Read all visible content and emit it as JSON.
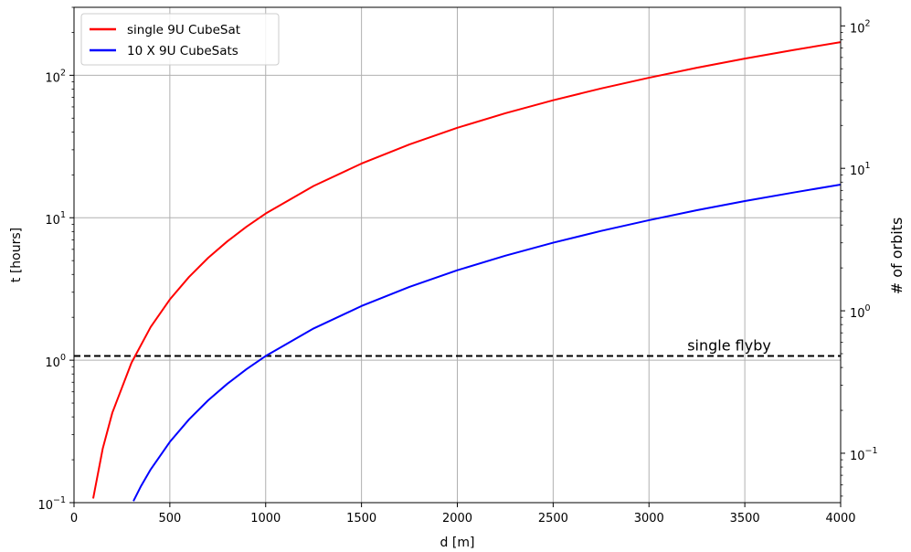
{
  "chart_data": {
    "type": "line",
    "xlabel": "d [m]",
    "ylabel": "t [hours]",
    "y2label": "# of orbits",
    "xlim": [
      0,
      4000
    ],
    "ylim": [
      0.1,
      300
    ],
    "y2lim": [
      0.045,
      135
    ],
    "yscale": "log",
    "y2scale": "log",
    "grid": true,
    "legend_position": "top-left",
    "x_ticks": [
      {
        "value": 0,
        "label": "0"
      },
      {
        "value": 500,
        "label": "500"
      },
      {
        "value": 1000,
        "label": "1000"
      },
      {
        "value": 1500,
        "label": "1500"
      },
      {
        "value": 2000,
        "label": "2000"
      },
      {
        "value": 2500,
        "label": "2500"
      },
      {
        "value": 3000,
        "label": "3000"
      },
      {
        "value": 3500,
        "label": "3500"
      },
      {
        "value": 4000,
        "label": "4000"
      }
    ],
    "y_ticks": [
      {
        "value": 0.1,
        "base": "10",
        "exp": "−1"
      },
      {
        "value": 1,
        "base": "10",
        "exp": "0"
      },
      {
        "value": 10,
        "base": "10",
        "exp": "1"
      },
      {
        "value": 100,
        "base": "10",
        "exp": "2"
      }
    ],
    "y2_ticks": [
      {
        "value": 0.1,
        "base": "10",
        "exp": "−1"
      },
      {
        "value": 1,
        "base": "10",
        "exp": "0"
      },
      {
        "value": 10,
        "base": "10",
        "exp": "1"
      },
      {
        "value": 100,
        "base": "10",
        "exp": "2"
      }
    ],
    "series": [
      {
        "name": "single 9U CubeSat",
        "color": "#ff0000",
        "x": [
          100,
          150,
          200,
          300,
          400,
          500,
          600,
          700,
          800,
          900,
          1000,
          1250,
          1500,
          1750,
          2000,
          2250,
          2500,
          2750,
          3000,
          3250,
          3500,
          3750,
          4000
        ],
        "y": [
          0.107,
          0.24,
          0.428,
          0.96,
          1.71,
          2.67,
          3.84,
          5.23,
          6.83,
          8.65,
          10.7,
          16.7,
          24.0,
          32.7,
          42.8,
          54.1,
          66.8,
          80.8,
          96.1,
          113,
          131,
          150,
          171
        ]
      },
      {
        "name": "10 X 9U CubeSats",
        "color": "#0000ff",
        "x": [
          310,
          350,
          400,
          500,
          600,
          700,
          800,
          900,
          1000,
          1250,
          1500,
          1750,
          2000,
          2250,
          2500,
          2750,
          3000,
          3250,
          3500,
          3750,
          4000
        ],
        "y": [
          0.1025,
          0.131,
          0.171,
          0.267,
          0.384,
          0.523,
          0.683,
          0.865,
          1.07,
          1.67,
          2.4,
          3.27,
          4.28,
          5.41,
          6.68,
          8.08,
          9.61,
          11.3,
          13.1,
          15.0,
          17.1
        ]
      }
    ],
    "reference_line": {
      "y": 1.07,
      "color": "#000000",
      "style": "dashed"
    },
    "annotations": [
      {
        "text": "single flyby",
        "x": 3200,
        "y": 1.07
      }
    ]
  }
}
